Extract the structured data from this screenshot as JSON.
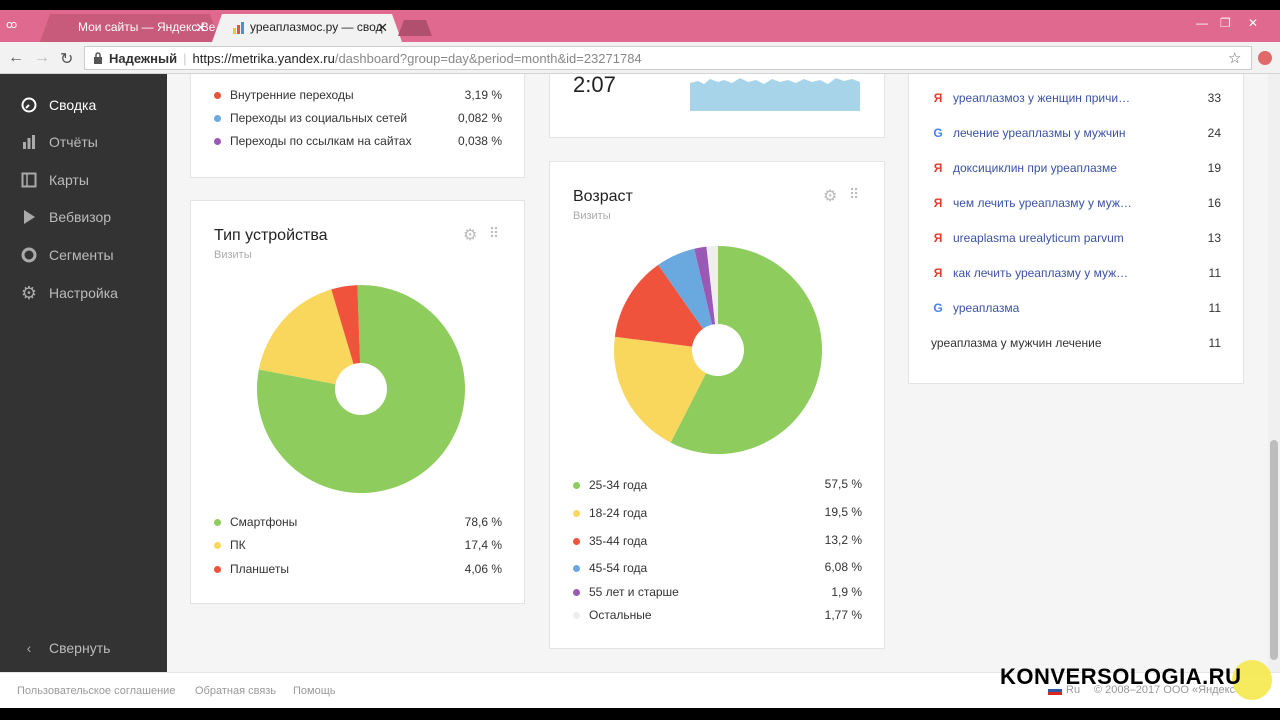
{
  "browser": {
    "tabs": [
      {
        "label": "Мои сайты — Яндекс.Ве",
        "active": false
      },
      {
        "label": "уреаплазмос.ру — свод",
        "active": true
      }
    ],
    "secure_label": "Надежный",
    "url_host": "https://metrika.yandex.ru",
    "url_rest": "/dashboard?group=day&period=month&id=23271784"
  },
  "sidebar": {
    "items": [
      {
        "label": "Сводка",
        "icon": "gauge-icon"
      },
      {
        "label": "Отчёты",
        "icon": "bar-chart-icon"
      },
      {
        "label": "Карты",
        "icon": "map-icon"
      },
      {
        "label": "Вебвизор",
        "icon": "play-icon"
      },
      {
        "label": "Сегменты",
        "icon": "segment-icon"
      },
      {
        "label": "Настройка",
        "icon": "gear-icon"
      }
    ],
    "collapse_label": "Свернуть"
  },
  "traffic": {
    "rows": [
      {
        "label": "Внутренние переходы",
        "value": "3,19 %",
        "color": "#e8533a"
      },
      {
        "label": "Переходы из социальных сетей",
        "value": "0,082 %",
        "color": "#6aa9e0"
      },
      {
        "label": "Переходы по ссылкам на сайтах",
        "value": "0,038 %",
        "color": "#9b59b6"
      }
    ]
  },
  "time_widget": {
    "value": "2:07"
  },
  "device": {
    "title": "Тип устройства",
    "subtitle": "Визиты",
    "rows": [
      {
        "label": "Смартфоны",
        "value": "78,6 %",
        "color": "#8fcc5e"
      },
      {
        "label": "ПК",
        "value": "17,4 %",
        "color": "#f9d65c"
      },
      {
        "label": "Планшеты",
        "value": "4,06 %",
        "color": "#f0533c"
      }
    ]
  },
  "age": {
    "title": "Возраст",
    "subtitle": "Визиты",
    "rows": [
      {
        "label": "25-34 года",
        "value": "57,5 %",
        "color": "#8fcc5e"
      },
      {
        "label": "18-24 года",
        "value": "19,5 %",
        "color": "#f9d65c"
      },
      {
        "label": "35-44 года",
        "value": "13,2 %",
        "color": "#f0533c"
      },
      {
        "label": "45-54 года",
        "value": "6,08 %",
        "color": "#6aa9e0"
      },
      {
        "label": "55 лет и старше",
        "value": "1,9 %",
        "color": "#9b59b6"
      },
      {
        "label": "Остальные",
        "value": "1,77 %",
        "color": "#eeeeee"
      }
    ]
  },
  "queries": {
    "rows": [
      {
        "source": "yandex",
        "text": "уреаплазмоз у женщин причи…",
        "count": "33"
      },
      {
        "source": "google",
        "text": "лечение уреаплазмы у мужчин",
        "count": "24"
      },
      {
        "source": "yandex",
        "text": "доксициклин при уреаплазме",
        "count": "19"
      },
      {
        "source": "yandex",
        "text": "чем лечить уреаплазму у муж…",
        "count": "16"
      },
      {
        "source": "yandex",
        "text": "ureaplasma urealyticum parvum",
        "count": "13"
      },
      {
        "source": "yandex",
        "text": "как лечить уреаплазму у муж…",
        "count": "11"
      },
      {
        "source": "google",
        "text": "уреаплазма",
        "count": "11"
      },
      {
        "source": "none",
        "text": "уреаплазма у мужчин лечение",
        "count": "11"
      }
    ]
  },
  "footer": {
    "links": [
      "Пользовательское соглашение",
      "Обратная связь",
      "Помощь"
    ],
    "lang": "Ru",
    "copyright": "© 2008–2017  ООО «Яндекс»",
    "watermark": "KONVERSOLOGIA.RU"
  },
  "chart_data": [
    {
      "type": "pie",
      "title": "Тип устройства",
      "subtitle": "Визиты",
      "categories": [
        "Смартфоны",
        "ПК",
        "Планшеты"
      ],
      "values": [
        78.6,
        17.4,
        4.06
      ]
    },
    {
      "type": "pie",
      "title": "Возраст",
      "subtitle": "Визиты",
      "categories": [
        "25-34 года",
        "18-24 года",
        "35-44 года",
        "45-54 года",
        "55 лет и старше",
        "Остальные"
      ],
      "values": [
        57.5,
        19.5,
        13.2,
        6.08,
        1.9,
        1.77
      ]
    }
  ]
}
